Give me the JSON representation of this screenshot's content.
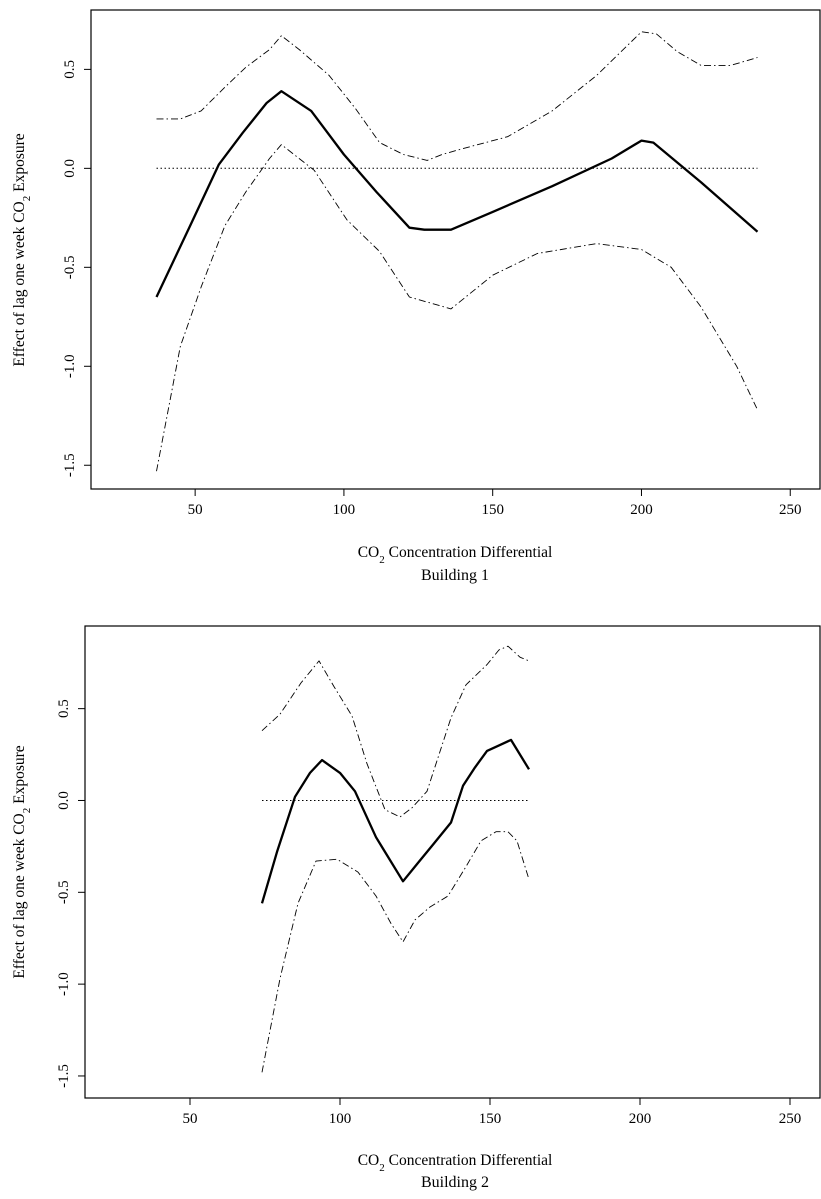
{
  "chart_data": [
    {
      "type": "line",
      "subtitle": "Building 1",
      "xlabel": {
        "prefix": "CO",
        "sub": "2",
        "suffix": " Concentration Differential"
      },
      "ylabel": {
        "prefix": "Effect of lag one week CO",
        "sub": "2",
        "suffix": " Exposure"
      },
      "xlim": [
        15,
        260
      ],
      "ylim": [
        -1.62,
        0.8
      ],
      "xticks": [
        50,
        100,
        150,
        200,
        250
      ],
      "xtick_labels": [
        "50",
        "100",
        "150",
        "200",
        "250"
      ],
      "yticks": [
        -1.5,
        -1.0,
        -0.5,
        0.0,
        0.5
      ],
      "ytick_labels": [
        "-1.5",
        "-1.0",
        "-0.5",
        "0.0",
        "0.5"
      ],
      "grid": false,
      "series": [
        {
          "style": "solid",
          "x": [
            37,
            48,
            58,
            66,
            74,
            79,
            89,
            100,
            111,
            122,
            127,
            136,
            150,
            170,
            190,
            200,
            204,
            220,
            239
          ],
          "y": [
            -0.65,
            -0.3,
            0.02,
            0.18,
            0.33,
            0.39,
            0.29,
            0.07,
            -0.12,
            -0.3,
            -0.31,
            -0.31,
            -0.22,
            -0.09,
            0.05,
            0.14,
            0.13,
            -0.07,
            -0.32
          ]
        },
        {
          "style": "dashdot",
          "x": [
            37,
            45,
            52,
            60,
            67,
            75,
            79,
            85,
            95,
            104,
            112,
            120,
            128,
            133,
            140,
            155,
            170,
            185,
            200,
            205,
            212,
            220,
            230,
            239
          ],
          "y": [
            0.25,
            0.25,
            0.29,
            0.41,
            0.51,
            0.6,
            0.67,
            0.6,
            0.47,
            0.3,
            0.13,
            0.07,
            0.04,
            0.07,
            0.1,
            0.16,
            0.29,
            0.47,
            0.69,
            0.68,
            0.59,
            0.52,
            0.52,
            0.56
          ]
        },
        {
          "style": "dashdot",
          "x": [
            37,
            45,
            52,
            60,
            67,
            75,
            79,
            90,
            101,
            112,
            122,
            136,
            150,
            165,
            185,
            200,
            210,
            220,
            232,
            239
          ],
          "y": [
            -1.53,
            -0.9,
            -0.6,
            -0.29,
            -0.12,
            0.05,
            0.12,
            -0.01,
            -0.26,
            -0.42,
            -0.65,
            -0.71,
            -0.54,
            -0.43,
            -0.38,
            -0.41,
            -0.5,
            -0.7,
            -1.0,
            -1.22
          ]
        },
        {
          "style": "dotted",
          "x": [
            37,
            239
          ],
          "y": [
            0,
            0
          ]
        }
      ]
    },
    {
      "type": "line",
      "subtitle": "Building 2",
      "xlabel": {
        "prefix": "CO",
        "sub": "2",
        "suffix": " Concentration Differential"
      },
      "ylabel": {
        "prefix": "Effect of lag one week CO",
        "sub": "2",
        "suffix": " Exposure"
      },
      "xlim": [
        15,
        260
      ],
      "ylim": [
        -1.62,
        0.95
      ],
      "xticks": [
        50,
        100,
        150,
        200,
        250
      ],
      "xtick_labels": [
        "50",
        "100",
        "150",
        "200",
        "250"
      ],
      "yticks": [
        -1.5,
        -1.0,
        -0.5,
        0.0,
        0.5
      ],
      "ytick_labels": [
        "-1.5",
        "-1.0",
        "-0.5",
        "0.0",
        "0.5"
      ],
      "grid": false,
      "series": [
        {
          "style": "solid",
          "x": [
            74,
            79,
            85,
            90,
            94,
            100,
            105,
            112,
            121,
            126,
            131,
            137,
            141,
            145,
            149,
            153,
            157,
            163
          ],
          "y": [
            -0.56,
            -0.28,
            0.02,
            0.15,
            0.22,
            0.15,
            0.05,
            -0.2,
            -0.44,
            -0.34,
            -0.24,
            -0.12,
            0.08,
            0.18,
            0.27,
            0.3,
            0.33,
            0.17
          ]
        },
        {
          "style": "dashdot",
          "x": [
            74,
            80,
            87,
            93,
            98,
            104,
            109,
            115,
            120,
            124,
            129,
            133,
            137,
            142,
            149,
            153,
            156,
            160,
            163
          ],
          "y": [
            0.38,
            0.47,
            0.64,
            0.76,
            0.62,
            0.46,
            0.2,
            -0.05,
            -0.09,
            -0.04,
            0.05,
            0.25,
            0.45,
            0.63,
            0.74,
            0.82,
            0.84,
            0.78,
            0.76
          ]
        },
        {
          "style": "dashdot",
          "x": [
            74,
            80,
            86,
            92,
            99,
            106,
            112,
            117,
            121,
            125,
            130,
            136,
            142,
            147,
            152,
            156,
            159,
            163
          ],
          "y": [
            -1.48,
            -0.97,
            -0.56,
            -0.33,
            -0.32,
            -0.39,
            -0.52,
            -0.67,
            -0.77,
            -0.65,
            -0.58,
            -0.52,
            -0.36,
            -0.22,
            -0.17,
            -0.17,
            -0.22,
            -0.43
          ]
        },
        {
          "style": "dotted",
          "x": [
            74,
            163
          ],
          "y": [
            0,
            0
          ]
        }
      ]
    }
  ]
}
